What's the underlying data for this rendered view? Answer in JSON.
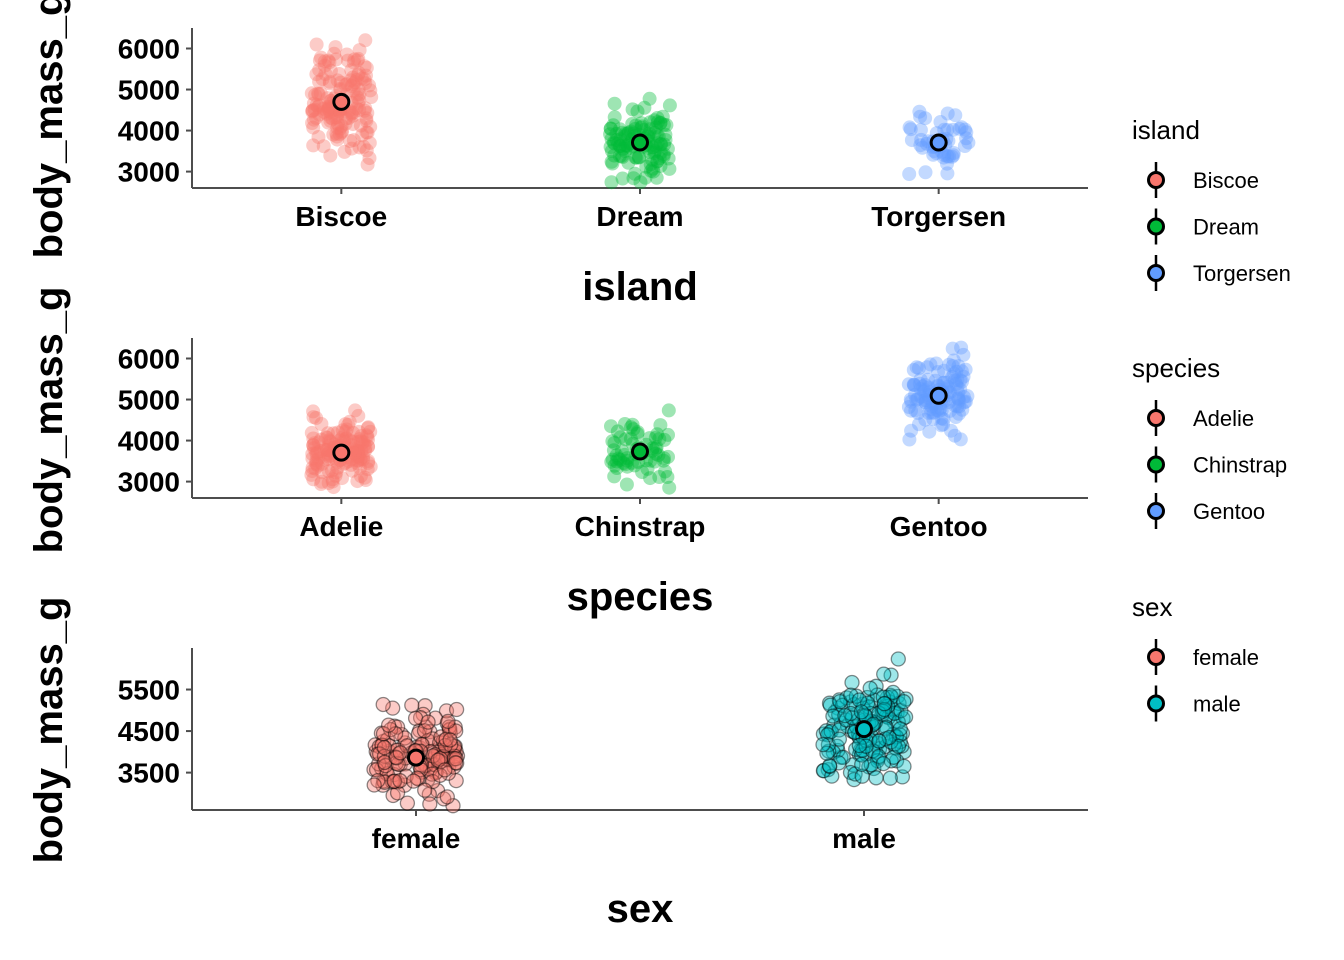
{
  "chart_data": [
    {
      "type": "scatter",
      "subtype": "jitter-with-mean",
      "x_variable": "island",
      "xlabel": "island",
      "ylabel": "body_mass_g",
      "categories": [
        "Biscoe",
        "Dream",
        "Torgersen"
      ],
      "colors": [
        "#F8766D",
        "#00BA38",
        "#619CFF"
      ],
      "yticks": [
        3000,
        4000,
        5000,
        6000
      ],
      "ylim": [
        2600,
        6500
      ],
      "point_outline": false,
      "groups": [
        {
          "category": "Biscoe",
          "n": 160,
          "mean": 4700,
          "min": 2850,
          "max": 6300
        },
        {
          "category": "Dream",
          "n": 120,
          "mean": 3710,
          "min": 2700,
          "max": 4800
        },
        {
          "category": "Torgersen",
          "n": 50,
          "mean": 3710,
          "min": 2900,
          "max": 4700
        }
      ],
      "legend": {
        "title": "island",
        "entries": [
          "Biscoe",
          "Dream",
          "Torgersen"
        ]
      }
    },
    {
      "type": "scatter",
      "subtype": "jitter-with-mean",
      "x_variable": "species",
      "xlabel": "species",
      "ylabel": "body_mass_g",
      "categories": [
        "Adelie",
        "Chinstrap",
        "Gentoo"
      ],
      "colors": [
        "#F8766D",
        "#00BA38",
        "#619CFF"
      ],
      "yticks": [
        3000,
        4000,
        5000,
        6000
      ],
      "ylim": [
        2600,
        6500
      ],
      "point_outline": false,
      "groups": [
        {
          "category": "Adelie",
          "n": 146,
          "mean": 3706,
          "min": 2850,
          "max": 4775
        },
        {
          "category": "Chinstrap",
          "n": 68,
          "mean": 3733,
          "min": 2700,
          "max": 4800
        },
        {
          "category": "Gentoo",
          "n": 119,
          "mean": 5092,
          "min": 3950,
          "max": 6300
        }
      ],
      "legend": {
        "title": "species",
        "entries": [
          "Adelie",
          "Chinstrap",
          "Gentoo"
        ]
      }
    },
    {
      "type": "scatter",
      "subtype": "jitter-with-mean",
      "x_variable": "sex",
      "xlabel": "sex",
      "ylabel": "body_mass_g",
      "categories": [
        "female",
        "male"
      ],
      "colors": [
        "#F8766D",
        "#00BFC4"
      ],
      "yticks": [
        3500,
        4500,
        5500
      ],
      "ylim": [
        2600,
        6500
      ],
      "point_outline": true,
      "groups": [
        {
          "category": "female",
          "n": 165,
          "mean": 3862,
          "min": 2700,
          "max": 5200
        },
        {
          "category": "male",
          "n": 168,
          "mean": 4546,
          "min": 3250,
          "max": 6300
        }
      ],
      "legend": {
        "title": "sex",
        "entries": [
          "female",
          "male"
        ]
      }
    }
  ]
}
